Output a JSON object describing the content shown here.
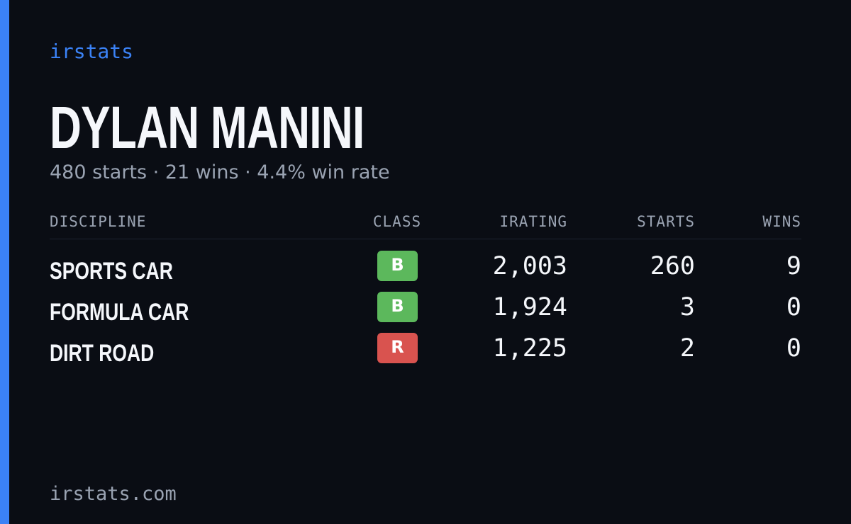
{
  "brand": "irstats",
  "driver": {
    "name": "DYLAN MANINI",
    "summary": "480 starts · 21 wins · 4.4% win rate"
  },
  "table": {
    "columns": [
      "DISCIPLINE",
      "CLASS",
      "IRATING",
      "STARTS",
      "WINS"
    ],
    "rows": [
      {
        "discipline": "SPORTS CAR",
        "class": "B",
        "class_color": "#5cb85c",
        "irating": "2,003",
        "starts": "260",
        "wins": "9"
      },
      {
        "discipline": "FORMULA CAR",
        "class": "B",
        "class_color": "#5cb85c",
        "irating": "1,924",
        "starts": "3",
        "wins": "0"
      },
      {
        "discipline": "DIRT ROAD",
        "class": "R",
        "class_color": "#d9534f",
        "irating": "1,225",
        "starts": "2",
        "wins": "0"
      }
    ]
  },
  "footer": {
    "url": "irstats.com"
  }
}
